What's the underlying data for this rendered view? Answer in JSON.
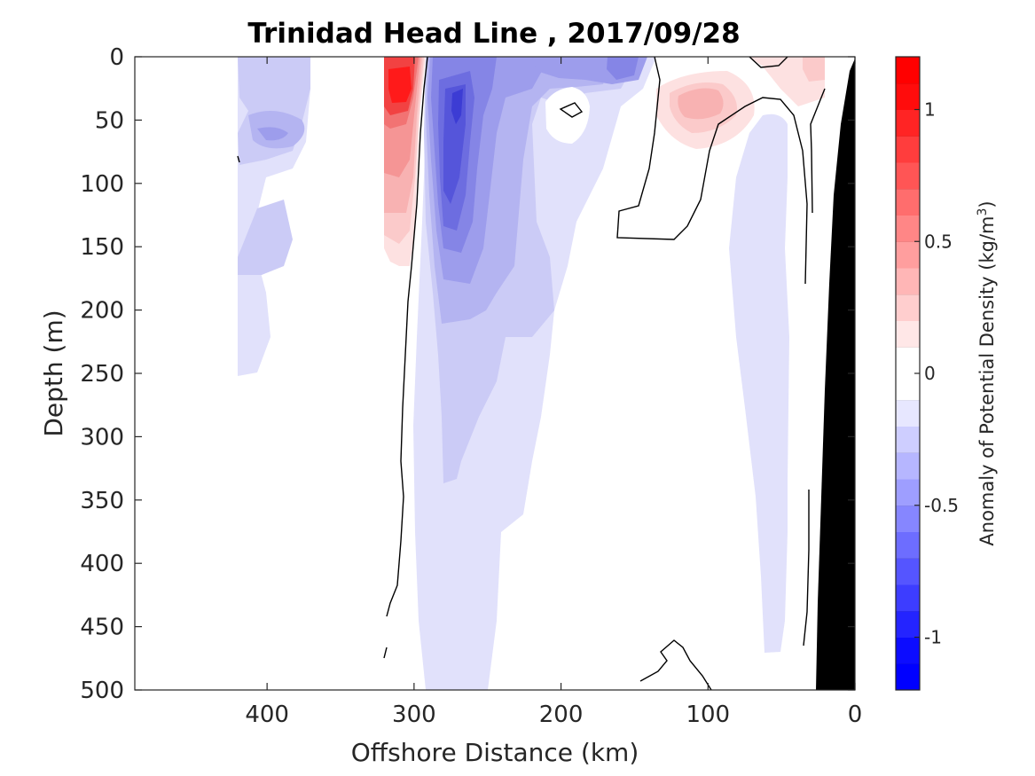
{
  "chart_data": {
    "type": "heatmap",
    "title": "Trinidad Head Line , 2017/09/28",
    "xlabel": "Offshore Distance (km)",
    "ylabel": "Depth (m)",
    "xlim": [
      490,
      0
    ],
    "ylim": [
      0,
      500
    ],
    "x_reversed": true,
    "y_reversed": true,
    "x_ticks": [
      "400",
      "300",
      "200",
      "100",
      "0"
    ],
    "x_tick_values": [
      400,
      300,
      200,
      100,
      0
    ],
    "y_ticks": [
      "0",
      "50",
      "100",
      "150",
      "200",
      "250",
      "300",
      "350",
      "400",
      "450",
      "500"
    ],
    "y_tick_values": [
      0,
      50,
      100,
      150,
      200,
      250,
      300,
      350,
      400,
      450,
      500
    ],
    "colorbar": {
      "label_main": "Anomaly of Potential Density (kg/m",
      "label_sup": "3",
      "label_close": ")",
      "range": [
        -1.2,
        1.2
      ],
      "ticks": [
        "1",
        "0.5",
        "0",
        "-0.5",
        "-1"
      ],
      "tick_values": [
        1,
        0.5,
        0,
        -0.5,
        -1
      ],
      "step": 0.1,
      "colormap": "blue-white-red",
      "positive_color": "#ff0000",
      "negative_color": "#0000ff",
      "neutral_color": "#ffffff"
    },
    "zero_contour_color": "#000000",
    "bathymetry_color": "#000000",
    "features": [
      {
        "name": "surface-negative-anomaly-west",
        "x_range": [
          420,
          370
        ],
        "depth_range": [
          0,
          250
        ],
        "peak_value": -0.4,
        "peak_x": 398,
        "peak_depth": 60
      },
      {
        "name": "positive-anomaly-core",
        "x_range": [
          320,
          295
        ],
        "depth_range": [
          0,
          160
        ],
        "peak_value": 1.1,
        "peak_x": 315,
        "peak_depth": 25
      },
      {
        "name": "negative-anomaly-core",
        "x_range": [
          295,
          140
        ],
        "depth_range": [
          0,
          500
        ],
        "peak_value": -0.85,
        "peak_x": 270,
        "peak_depth": 35
      },
      {
        "name": "positive-anomaly-nearshore",
        "x_range": [
          140,
          20
        ],
        "depth_range": [
          0,
          100
        ],
        "peak_value": 0.4,
        "peak_x": 115,
        "peak_depth": 35
      },
      {
        "name": "negative-anomaly-nearshore",
        "x_range": [
          90,
          30
        ],
        "depth_range": [
          40,
          470
        ],
        "peak_value": -0.15,
        "peak_x": 60,
        "peak_depth": 200
      }
    ]
  }
}
